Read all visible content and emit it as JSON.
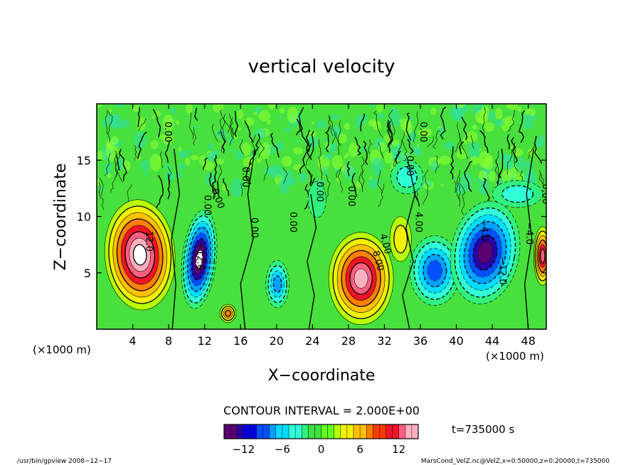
{
  "chart_data": {
    "type": "heatmap",
    "title": "vertical velocity",
    "xlabel": "X−coordinate",
    "ylabel": "Z−coordinate",
    "x_unit_left": "(×1000 m)",
    "x_unit_right": "(×1000 m)",
    "x_range": [
      0,
      50
    ],
    "y_range": [
      0,
      20
    ],
    "x_ticks": [
      {
        "value": 4,
        "label": "4"
      },
      {
        "value": 8,
        "label": "8"
      },
      {
        "value": 12,
        "label": "12"
      },
      {
        "value": 16,
        "label": "16"
      },
      {
        "value": 20,
        "label": "20"
      },
      {
        "value": 24,
        "label": "24"
      },
      {
        "value": 28,
        "label": "28"
      },
      {
        "value": 32,
        "label": "32"
      },
      {
        "value": 36,
        "label": "36"
      },
      {
        "value": 40,
        "label": "40"
      },
      {
        "value": 44,
        "label": "44"
      },
      {
        "value": 48,
        "label": "48"
      }
    ],
    "y_ticks": [
      {
        "value": 5,
        "label": "5"
      },
      {
        "value": 10,
        "label": "10"
      },
      {
        "value": 15,
        "label": "15"
      }
    ],
    "contour_interval_text": "CONTOUR INTERVAL = 2.000E+00",
    "time_text": "t=735000 s",
    "colorbar": {
      "range": [
        -15,
        15
      ],
      "ticks": [
        {
          "value": -12,
          "label": "−12"
        },
        {
          "value": -6,
          "label": "−6"
        },
        {
          "value": 0,
          "label": "0"
        },
        {
          "value": 6,
          "label": "6"
        },
        {
          "value": 12,
          "label": "12"
        }
      ]
    },
    "contour_labels": [
      {
        "text": "12.0",
        "x": 5.5,
        "y": 7.8,
        "rot": 90
      },
      {
        "text": "0.00",
        "x": 7.6,
        "y": 17.5,
        "rot": 90
      },
      {
        "text": "0.00",
        "x": 12.0,
        "y": 11.0,
        "rot": 90
      },
      {
        "text": "−12.0",
        "x": 11.2,
        "y": 6.5,
        "rot": 90
      },
      {
        "text": "0.00",
        "x": 13.2,
        "y": 11.5,
        "rot": 70
      },
      {
        "text": "0.00",
        "x": 16.2,
        "y": 13.5,
        "rot": 90
      },
      {
        "text": "0.00",
        "x": 17.2,
        "y": 9.0,
        "rot": 90
      },
      {
        "text": "0.00",
        "x": 21.5,
        "y": 9.5,
        "rot": 90
      },
      {
        "text": "0.00",
        "x": 24.5,
        "y": 12.2,
        "rot": 90
      },
      {
        "text": "0.00",
        "x": 28.0,
        "y": 11.8,
        "rot": 90
      },
      {
        "text": "4.00",
        "x": 31.8,
        "y": 7.5,
        "rot": 75
      },
      {
        "text": "8.00",
        "x": 31.0,
        "y": 6.0,
        "rot": 75
      },
      {
        "text": "0.00",
        "x": 34.5,
        "y": 14.5,
        "rot": 90
      },
      {
        "text": "4.00",
        "x": 35.5,
        "y": 9.5,
        "rot": 90
      },
      {
        "text": "0.00",
        "x": 36.0,
        "y": 17.5,
        "rot": 90
      },
      {
        "text": "−4.0",
        "x": 42.8,
        "y": 8.8,
        "rot": 90
      },
      {
        "text": "−12.0",
        "x": 44.8,
        "y": 5.2,
        "rot": 90
      },
      {
        "text": "−4.0",
        "x": 47.8,
        "y": 8.5,
        "rot": 90
      },
      {
        "text": "0.00",
        "x": 49.6,
        "y": 12.0,
        "rot": 90
      }
    ]
  },
  "footer": {
    "left": "/usr/bin/gpview  2008−12−17",
    "right": "MarsCond_VelZ.nc@VelZ,x=0:50000,z=0:20000,t=735000"
  },
  "colors": {
    "scale": [
      "#5a0070",
      "#2a00a8",
      "#0000e0",
      "#0050ff",
      "#00a0ff",
      "#00dcff",
      "#30ffd8",
      "#30f080",
      "#40e040",
      "#60ff20",
      "#b8ff00",
      "#f0f000",
      "#ffc000",
      "#ff8000",
      "#ff3c00",
      "#f01428",
      "#ff6080",
      "#ffb0c0"
    ]
  }
}
